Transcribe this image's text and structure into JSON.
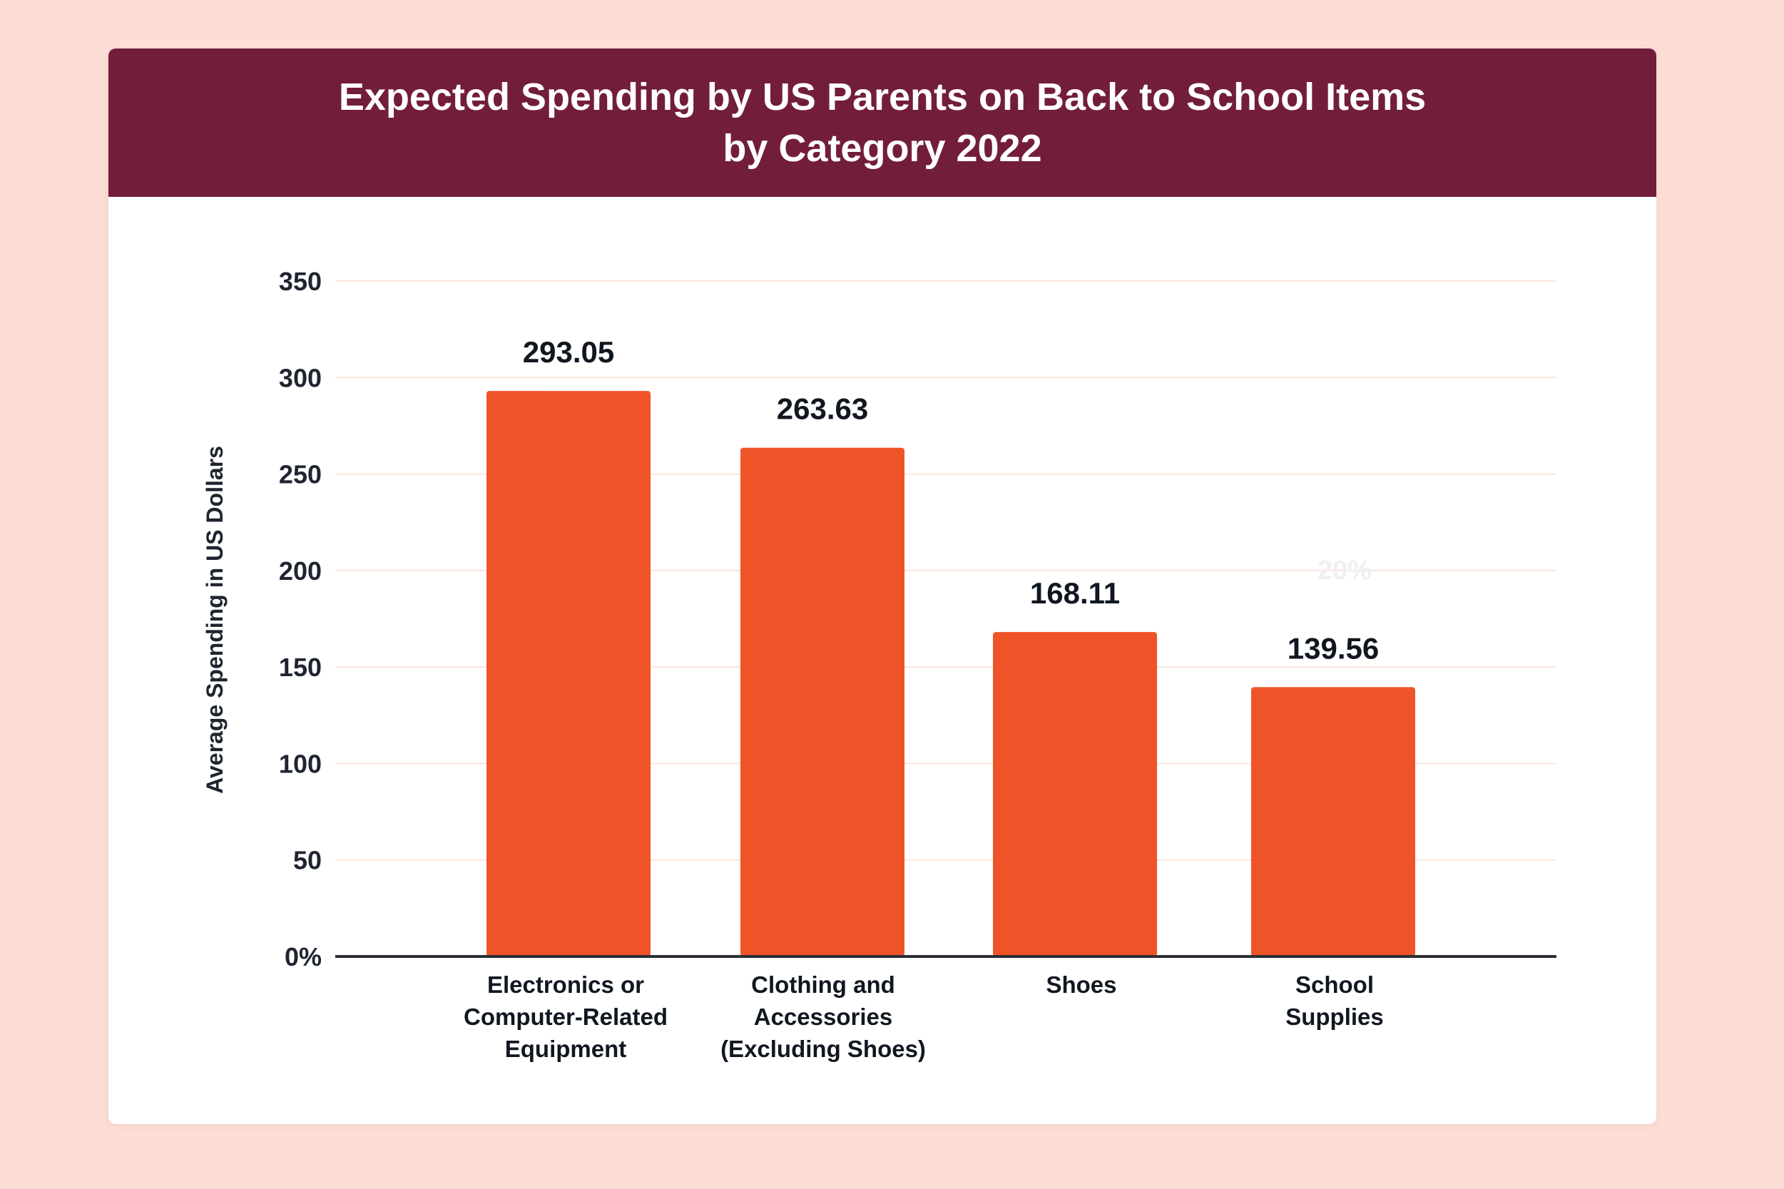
{
  "header": {
    "title_line1": "Expected Spending by US Parents on Back to School Items",
    "title_line2": "by Category 2022"
  },
  "colors": {
    "background": "#fcded6",
    "header": "#731d3d",
    "bar": "#ef5429",
    "gridline": "#fde3dc",
    "axis": "#2b2f36"
  },
  "chart_data": {
    "type": "bar",
    "title": "Expected Spending by US Parents on Back to School Items by Category 2022",
    "xlabel": "",
    "ylabel": "Average Spending in US Dollars",
    "categories": [
      [
        "Electronics or",
        "Computer-Related",
        "Equipment"
      ],
      [
        "Clothing and",
        "Accessories",
        "(Excluding Shoes)"
      ],
      [
        "Shoes"
      ],
      [
        "School",
        "Supplies"
      ]
    ],
    "category_names": [
      "Electronics or Computer-Related Equipment",
      "Clothing and Accessories (Excluding Shoes)",
      "Shoes",
      "School Supplies"
    ],
    "values": [
      293.05,
      263.63,
      168.11,
      139.56
    ],
    "data_labels": [
      "293.05",
      "263.63",
      "168.11",
      "139.56"
    ],
    "ylim": [
      0,
      350
    ],
    "yticks": [
      0,
      50,
      100,
      150,
      200,
      250,
      300,
      350
    ],
    "ytick_labels": [
      "0%",
      "50",
      "100",
      "150",
      "200",
      "250",
      "300",
      "350"
    ],
    "grid": true,
    "legend": "none",
    "annotations": [
      {
        "text": "20%",
        "x_category": 3,
        "y": 200,
        "style": "faint"
      }
    ]
  }
}
